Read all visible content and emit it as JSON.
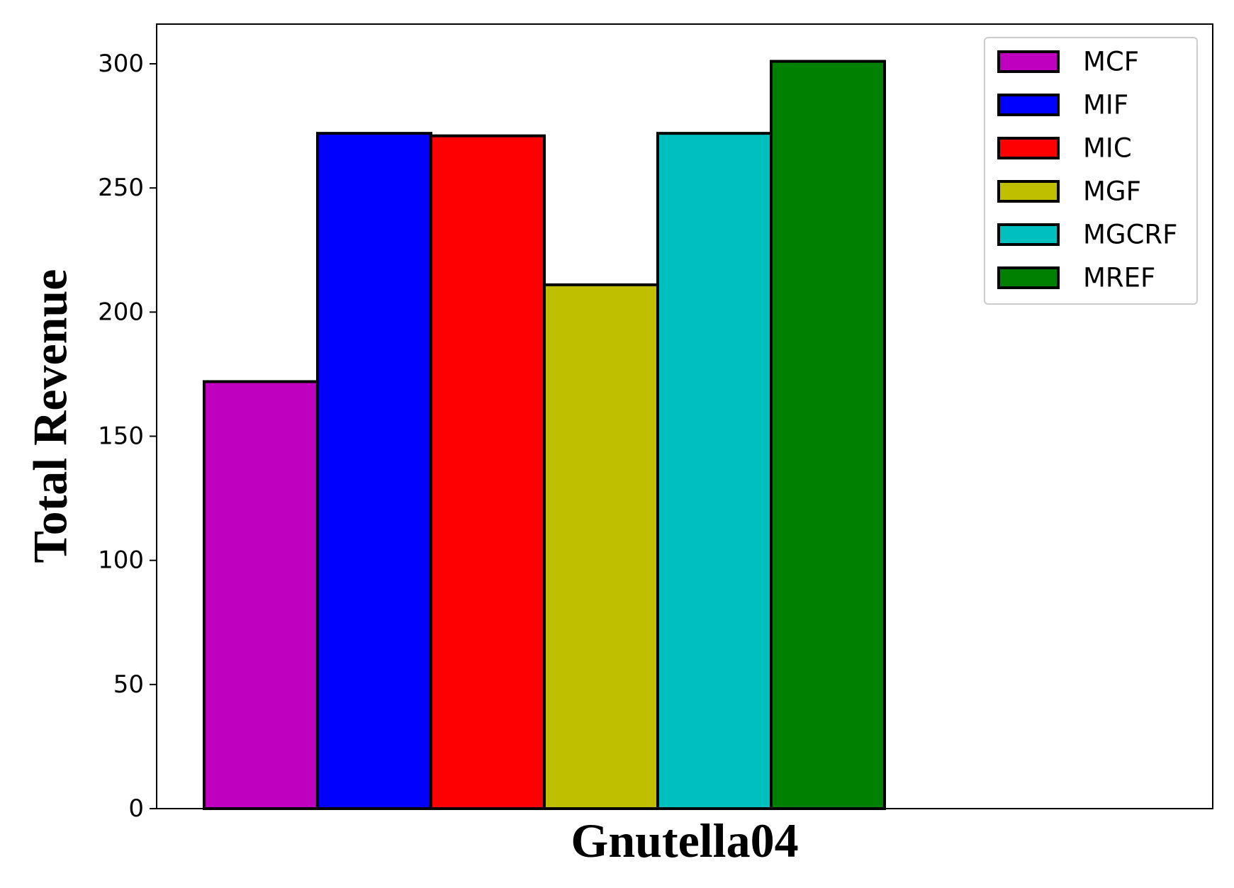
{
  "chart_data": {
    "type": "bar",
    "categories": [
      "Gnutella04"
    ],
    "series": [
      {
        "name": "MCF",
        "values": [
          172
        ],
        "color": "#bf00bf"
      },
      {
        "name": "MIF",
        "values": [
          272
        ],
        "color": "#0000ff"
      },
      {
        "name": "MIC",
        "values": [
          271
        ],
        "color": "#ff0000"
      },
      {
        "name": "MGF",
        "values": [
          211
        ],
        "color": "#bfbf00"
      },
      {
        "name": "MGCRF",
        "values": [
          272
        ],
        "color": "#00bfbf"
      },
      {
        "name": "MREF",
        "values": [
          301
        ],
        "color": "#008000"
      }
    ],
    "xlabel": "Gnutella04",
    "ylabel": "Total Revenue",
    "ylim": [
      0,
      316
    ],
    "yticks": [
      0,
      50,
      100,
      150,
      200,
      250,
      300
    ],
    "grid": false,
    "legend_position": "top-right",
    "bar_edge_color": "#000000"
  }
}
